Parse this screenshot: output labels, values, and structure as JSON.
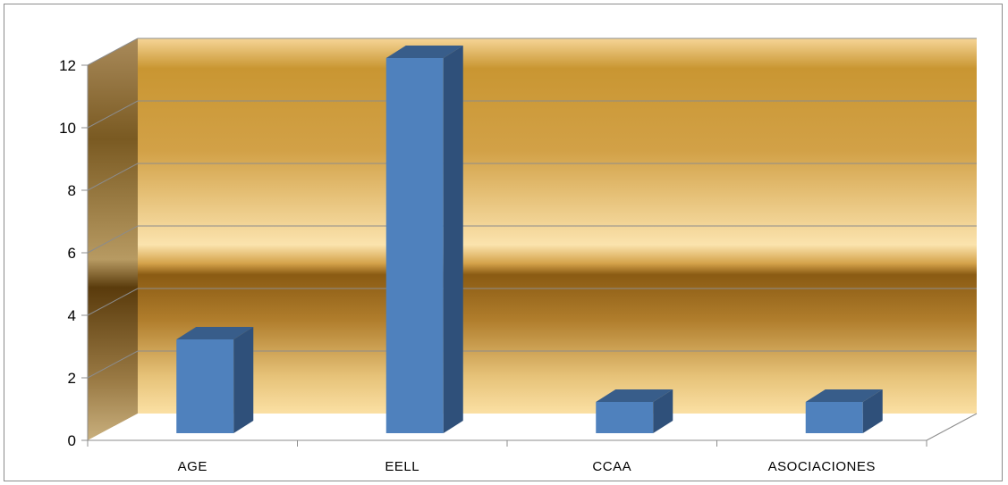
{
  "chart_data": {
    "type": "bar",
    "title": "",
    "xlabel": "",
    "ylabel": "",
    "categories": [
      "AGE",
      "EELL",
      "CCAA",
      "ASOCIACIONES"
    ],
    "values": [
      3,
      12,
      1,
      1
    ],
    "ylim": [
      0,
      12
    ],
    "yticks": [
      "0",
      "2",
      "4",
      "6",
      "8",
      "10",
      "12"
    ],
    "grid": true,
    "legend": "none",
    "style": "3d-column",
    "colors": {
      "bar_front": "#4f81bd",
      "bar_side": "#2f507a",
      "bar_top": "#385d8a",
      "gridline": "#8c8c8c",
      "wall_gold_dark": "#7a5414",
      "wall_gold_light": "#fbe0a4"
    }
  }
}
